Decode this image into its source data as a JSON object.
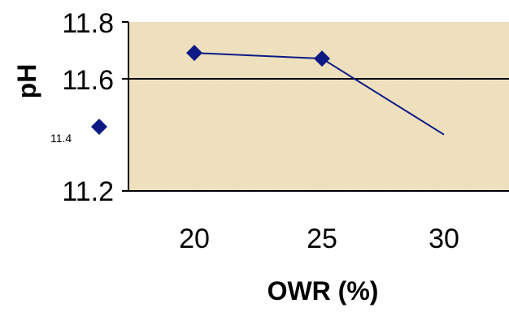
{
  "chart_data": {
    "type": "line",
    "xlabel": "OWR (%)",
    "ylabel": "pH",
    "x": [
      20,
      25,
      30
    ],
    "series": [
      {
        "values": [
          11.69,
          11.67,
          11.4
        ]
      }
    ],
    "ylim": [
      11.2,
      11.8
    ],
    "y_ticks": [
      "11.2",
      "11.6",
      "11.8"
    ],
    "x_ticks": [
      "20",
      "25",
      "30"
    ],
    "reference_line": 11.6,
    "stray_marker": {
      "label": "11.4",
      "y": 11.42
    },
    "grid": false,
    "legend": "none",
    "colors": {
      "series": "#0d1a85",
      "plot_background": "#f1e3c0",
      "axis": "#000000",
      "reference_line": "#000000"
    }
  }
}
